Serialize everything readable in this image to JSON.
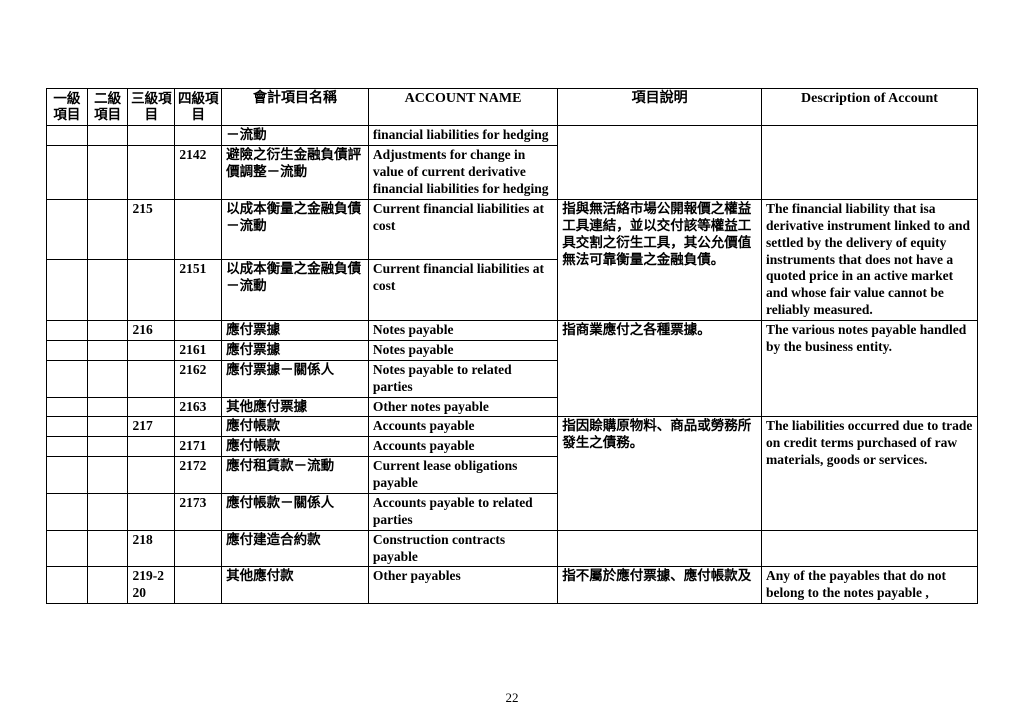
{
  "pageNumber": "22",
  "headers": {
    "c1": "一級項目",
    "c2": "二級項目",
    "c3": "三級項目",
    "c4": "四級項目",
    "c5": "會計項目名稱",
    "c6": "ACCOUNT NAME",
    "c7": "項目說明",
    "c8": "Description of Account"
  },
  "rows": [
    {
      "c1": "",
      "c2": "",
      "c3": "",
      "c4": "",
      "c5": "－流動",
      "c6": "financial liabilities for hedging",
      "c7": "",
      "c8": "",
      "g7": "open-top",
      "g8": "open-top"
    },
    {
      "c1": "",
      "c2": "",
      "c3": "",
      "c4": "2142",
      "c5": "避險之衍生金融負債評價調整－流動",
      "c6": "Adjustments for change in value of current derivative financial liabilities for hedging",
      "c7": "",
      "c8": "",
      "g7": "open-bottom",
      "g8": "open-bottom",
      "prev_g7": "open-bottom",
      "prev_g8": "open-bottom"
    },
    {
      "c1": "",
      "c2": "",
      "c3": "215",
      "c4": "",
      "c5": "以成本衡量之金融負債－流動",
      "c6": "Current financial liabilities at cost",
      "c7": "指與無活絡市場公開報價之權益工具連結，並以交付該等權益工具交割之衍生工具，其公允價值無法可靠衡量之金融負債。",
      "c8": "The financial liability that isa derivative instrument linked to and settled by the delivery of equity instruments that does not have a quoted price in an active market and whose fair value cannot be reliably measured.",
      "g7": "span2-top",
      "g8": "span2-top"
    },
    {
      "c1": "",
      "c2": "",
      "c3": "",
      "c4": "2151",
      "c5": "以成本衡量之金融負債－流動",
      "c6": "Current financial liabilities at cost",
      "c7": "",
      "c8": "",
      "g7": "merged",
      "g8": "merged"
    },
    {
      "c1": "",
      "c2": "",
      "c3": "216",
      "c4": "",
      "c5": "應付票據",
      "c6": "Notes payable",
      "c7": "指商業應付之各種票據。",
      "c8": "The various notes payable handled by the business entity.",
      "g7": "span4-top",
      "g8": "span4-top"
    },
    {
      "c1": "",
      "c2": "",
      "c3": "",
      "c4": "2161",
      "c5": "應付票據",
      "c6": "Notes payable",
      "c7": "",
      "c8": "",
      "g7": "merged",
      "g8": "merged"
    },
    {
      "c1": "",
      "c2": "",
      "c3": "",
      "c4": "2162",
      "c5": "應付票據－關係人",
      "c6": "Notes payable to related parties",
      "c7": "",
      "c8": "",
      "g7": "merged",
      "g8": "merged"
    },
    {
      "c1": "",
      "c2": "",
      "c3": "",
      "c4": "2163",
      "c5": "其他應付票據",
      "c6": "Other notes payable",
      "c7": "",
      "c8": "",
      "g7": "merged",
      "g8": "merged"
    },
    {
      "c1": "",
      "c2": "",
      "c3": "217",
      "c4": "",
      "c5": "應付帳款",
      "c6": "Accounts payable",
      "c7": "指因賒購原物料、商品或勞務所發生之債務。",
      "c8": "The liabilities occurred due to trade on credit terms purchased of raw materials, goods or services.",
      "g7": "span4-top",
      "g8": "span4-top"
    },
    {
      "c1": "",
      "c2": "",
      "c3": "",
      "c4": "2171",
      "c5": "應付帳款",
      "c6": "Accounts payable",
      "c7": "",
      "c8": "",
      "g7": "merged",
      "g8": "merged"
    },
    {
      "c1": "",
      "c2": "",
      "c3": "",
      "c4": "2172",
      "c5": "應付租賃款－流動",
      "c6": "Current lease obligations payable",
      "c7": "",
      "c8": "",
      "g7": "merged",
      "g8": "merged"
    },
    {
      "c1": "",
      "c2": "",
      "c3": "",
      "c4": "2173",
      "c5": "應付帳款－關係人",
      "c6": "Accounts payable to related parties",
      "c7": "",
      "c8": "",
      "g7": "merged",
      "g8": "merged"
    },
    {
      "c1": "",
      "c2": "",
      "c3": "218",
      "c4": "",
      "c5": "應付建造合約款",
      "c6": "Construction contracts payable",
      "c7": "",
      "c8": ""
    },
    {
      "c1": "",
      "c2": "",
      "c3": "219-220",
      "c4": "",
      "c5": "其他應付款",
      "c6": "Other payables",
      "c7": "指不屬於應付票據、應付帳款及",
      "c8": "Any of the payables that do not belong to the notes payable ,"
    }
  ]
}
